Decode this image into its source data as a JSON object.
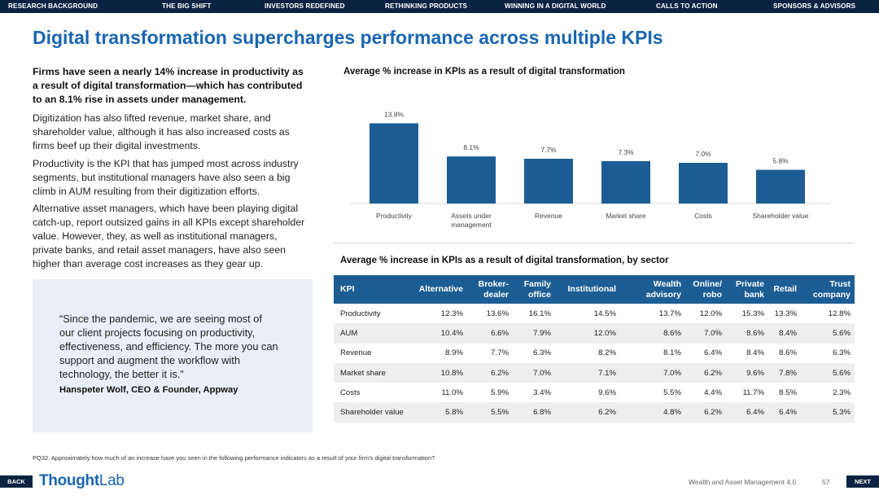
{
  "nav": [
    "RESEARCH BACKGROUND",
    "THE BIG SHIFT",
    "INVESTORS REDEFINED",
    "RETHINKING PRODUCTS",
    "WINNING IN A DIGITAL WORLD",
    "CALLS TO ACTION",
    "SPONSORS & ADVISORS"
  ],
  "title": "Digital transformation supercharges performance across multiple KPIs",
  "lead": "Firms have seen a nearly 14% increase in productivity as a result of digital transformation—which has contributed to an 8.1% rise in assets under management.",
  "paragraphs": [
    "Digitization has also lifted revenue, market share, and shareholder value, although it has also increased costs as firms beef up their digital investments.",
    "Productivity is the KPI that has jumped most across industry segments, but institutional managers have also seen a big climb in AUM resulting from their digitization efforts.",
    "Alternative asset managers, which have been playing digital catch-up, report outsized gains in all KPIs except shareholder value. However, they, as well as institutional managers, private banks, and retail asset managers, have also seen higher than average cost increases as they gear up."
  ],
  "quote": {
    "text": "“Since the pandemic, we are seeing most of our client projects focusing on productivity, effectiveness, and efficiency. The more you can support and augment the workflow with technology, the better it is.”",
    "author": "Hanspeter Wolf, CEO & Founder, Appway"
  },
  "chart_data": {
    "type": "bar",
    "title": "Average % increase in KPIs as a result of digital transformation",
    "categories": [
      "Productivity",
      "Assets under management",
      "Revenue",
      "Market share",
      "Costs",
      "Shareholder value"
    ],
    "values": [
      13.8,
      8.1,
      7.7,
      7.3,
      7.0,
      5.8
    ],
    "data_labels": [
      "13.8%",
      "8.1%",
      "7.7%",
      "7.3%",
      "7.0%",
      "5.8%"
    ],
    "bar_color": "#1c5d94",
    "ylim": [
      0,
      14
    ]
  },
  "table": {
    "title": "Average % increase in KPIs as a result of digital transformation, by sector",
    "headers": [
      "KPI",
      "Alternative",
      "Broker-dealer",
      "Family office",
      "Institutional",
      "Wealth advisory",
      "Online/ robo",
      "Private bank",
      "Retail",
      "Trust company"
    ],
    "rows": [
      [
        "Productivity",
        "12.3%",
        "13.6%",
        "16.1%",
        "14.5%",
        "13.7%",
        "12.0%",
        "15.3%",
        "13.3%",
        "12.8%"
      ],
      [
        "AUM",
        "10.4%",
        "6.6%",
        "7.9%",
        "12.0%",
        "8.6%",
        "7.0%",
        "8.6%",
        "8.4%",
        "5.6%"
      ],
      [
        "Revenue",
        "8.9%",
        "7.7%",
        "6.3%",
        "8.2%",
        "8.1%",
        "6.4%",
        "8.4%",
        "8.6%",
        "6.3%"
      ],
      [
        "Market share",
        "10.8%",
        "6.2%",
        "7.0%",
        "7.1%",
        "7.0%",
        "6.2%",
        "9.6%",
        "7.8%",
        "5.6%"
      ],
      [
        "Costs",
        "11.0%",
        "5.9%",
        "3.4%",
        "9.6%",
        "5.5%",
        "4.4%",
        "11.7%",
        "8.5%",
        "2.3%"
      ],
      [
        "Shareholder value",
        "5.8%",
        "5.5%",
        "6.8%",
        "6.2%",
        "4.8%",
        "6.2%",
        "6.4%",
        "6.4%",
        "5.3%"
      ]
    ]
  },
  "footnote": "PQ32. Approximately how much of an increase have you seen in the following performance indicators as a result of your firm’s digital transformation?",
  "footer": {
    "back": "BACK",
    "next": "NEXT",
    "logo_thought": "Thought",
    "logo_lab": "Lab",
    "publication": "Wealth and Asset Management 4.0",
    "page": "57"
  },
  "colors": {
    "navy": "#0a2342",
    "accent": "#1a66b0",
    "table_header": "#1c5d94"
  }
}
